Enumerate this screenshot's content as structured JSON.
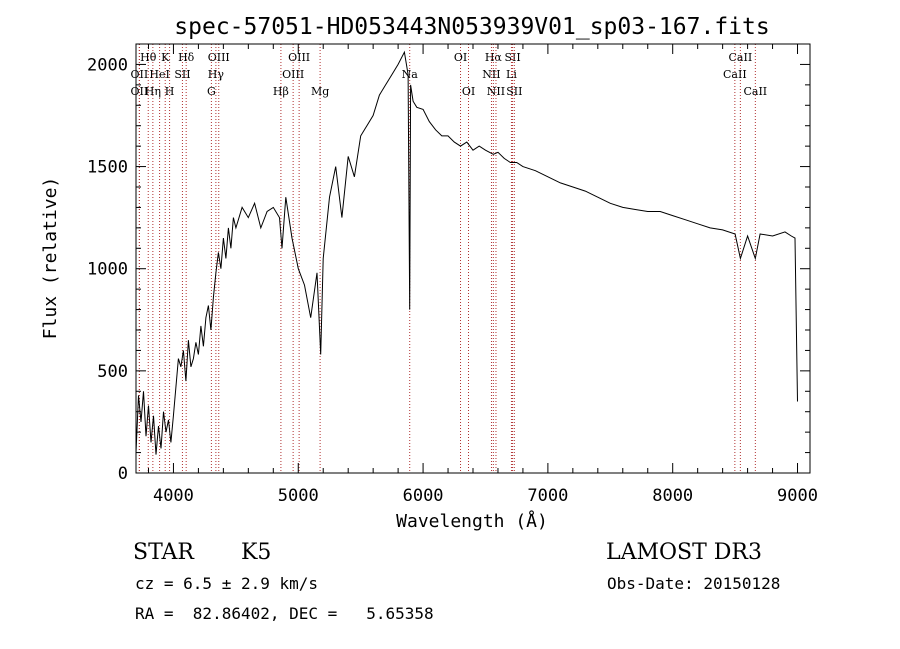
{
  "chart_data": {
    "type": "line",
    "title": "spec-57051-HD053443N053939V01_sp03-167.fits",
    "xlabel": "Wavelength (Å)",
    "ylabel": "Flux (relative)",
    "xlim": [
      3700,
      9100
    ],
    "ylim": [
      0,
      2100
    ],
    "x_ticks": [
      4000,
      5000,
      6000,
      7000,
      8000,
      9000
    ],
    "y_ticks": [
      0,
      500,
      1000,
      1500,
      2000
    ],
    "grid": false,
    "series": [
      {
        "x": [
          3700,
          3720,
          3740,
          3760,
          3780,
          3800,
          3820,
          3840,
          3860,
          3880,
          3900,
          3920,
          3940,
          3960,
          3980,
          4000,
          4020,
          4040,
          4060,
          4080,
          4100,
          4120,
          4140,
          4160,
          4180,
          4200,
          4220,
          4240,
          4260,
          4280,
          4300,
          4320,
          4340,
          4360,
          4380,
          4400,
          4420,
          4440,
          4460,
          4480,
          4500,
          4550,
          4600,
          4650,
          4700,
          4750,
          4800,
          4850,
          4870,
          4900,
          4950,
          5000,
          5050,
          5100,
          5150,
          5180,
          5200,
          5250,
          5300,
          5350,
          5400,
          5450,
          5500,
          5550,
          5600,
          5650,
          5700,
          5750,
          5800,
          5850,
          5880,
          5893,
          5900,
          5920,
          5950,
          6000,
          6050,
          6100,
          6150,
          6200,
          6250,
          6300,
          6350,
          6400,
          6450,
          6500,
          6563,
          6600,
          6650,
          6700,
          6750,
          6800,
          6900,
          7000,
          7100,
          7200,
          7300,
          7400,
          7500,
          7600,
          7700,
          7800,
          7900,
          8000,
          8100,
          8200,
          8300,
          8400,
          8500,
          8542,
          8600,
          8662,
          8700,
          8800,
          8900,
          8950,
          8980,
          9000
        ],
        "y": [
          100,
          380,
          250,
          400,
          180,
          330,
          150,
          280,
          90,
          230,
          120,
          300,
          200,
          260,
          150,
          280,
          420,
          560,
          520,
          600,
          450,
          650,
          520,
          560,
          640,
          580,
          720,
          620,
          760,
          820,
          700,
          860,
          980,
          1080,
          1000,
          1150,
          1050,
          1200,
          1100,
          1250,
          1200,
          1300,
          1250,
          1320,
          1200,
          1280,
          1300,
          1250,
          1100,
          1350,
          1150,
          1000,
          920,
          760,
          980,
          580,
          1050,
          1350,
          1500,
          1250,
          1550,
          1450,
          1650,
          1700,
          1750,
          1850,
          1900,
          1950,
          2000,
          2060,
          1950,
          800,
          1900,
          1820,
          1790,
          1780,
          1720,
          1680,
          1650,
          1650,
          1620,
          1600,
          1620,
          1580,
          1600,
          1580,
          1560,
          1570,
          1540,
          1520,
          1520,
          1500,
          1480,
          1450,
          1420,
          1400,
          1380,
          1350,
          1320,
          1300,
          1290,
          1280,
          1280,
          1260,
          1240,
          1220,
          1200,
          1190,
          1170,
          1050,
          1160,
          1050,
          1170,
          1160,
          1180,
          1160,
          1150,
          350
        ]
      }
    ],
    "annotations": [
      {
        "label": "Hθ",
        "x": 3798,
        "row": 0
      },
      {
        "label": "OII",
        "x": 3727,
        "row": 1
      },
      {
        "label": "OII",
        "x": 3727,
        "row": 2
      },
      {
        "label": "HeI",
        "x": 3889,
        "row": 1
      },
      {
        "label": "Hη",
        "x": 3835,
        "row": 2
      },
      {
        "label": "K",
        "x": 3934,
        "row": 0
      },
      {
        "label": "H",
        "x": 3969,
        "row": 2
      },
      {
        "label": "SII",
        "x": 4072,
        "row": 1
      },
      {
        "label": "Hδ",
        "x": 4102,
        "row": 0
      },
      {
        "label": "OIII",
        "x": 4363,
        "row": 0
      },
      {
        "label": "Hγ",
        "x": 4340,
        "row": 1
      },
      {
        "label": "G",
        "x": 4304,
        "row": 2
      },
      {
        "label": "Hβ",
        "x": 4861,
        "row": 2
      },
      {
        "label": "OIII",
        "x": 4959,
        "row": 1
      },
      {
        "label": "OIII",
        "x": 5007,
        "row": 0
      },
      {
        "label": "Mg",
        "x": 5175,
        "row": 2
      },
      {
        "label": "Na",
        "x": 5893,
        "row": 1
      },
      {
        "label": "OI",
        "x": 6300,
        "row": 0
      },
      {
        "label": "OI",
        "x": 6364,
        "row": 2
      },
      {
        "label": "Hα",
        "x": 6563,
        "row": 0
      },
      {
        "label": "NII",
        "x": 6548,
        "row": 1
      },
      {
        "label": "NII",
        "x": 6584,
        "row": 2
      },
      {
        "label": "SII",
        "x": 6717,
        "row": 0
      },
      {
        "label": "Li",
        "x": 6708,
        "row": 1
      },
      {
        "label": "SII",
        "x": 6731,
        "row": 2
      },
      {
        "label": "CaII",
        "x": 8542,
        "row": 0
      },
      {
        "label": "CaII",
        "x": 8498,
        "row": 1
      },
      {
        "label": "CaII",
        "x": 8662,
        "row": 2
      }
    ],
    "line_color": "#000000",
    "marker_line_color": "#b03030"
  },
  "info": {
    "object_class": "STAR",
    "subclass": "K5",
    "survey": "LAMOST DR3",
    "redshift": "cz = 6.5 ± 2.9 km/s",
    "obs_date": "Obs-Date: 20150128",
    "coords": "RA =  82.86402, DEC =   5.65358"
  }
}
